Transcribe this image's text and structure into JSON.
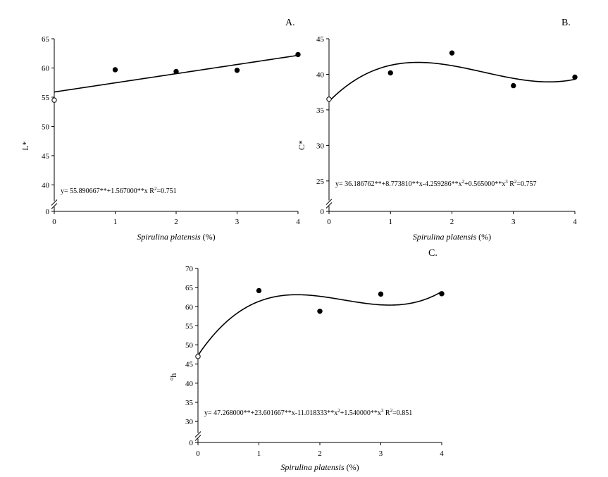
{
  "chart_data": [
    {
      "type": "scatter",
      "panel_label": "A.",
      "xlabel_italic": "Spirulina platensis",
      "xlabel_unit": " (%)",
      "ylabel": "L*",
      "x_ticks": [
        0,
        1,
        2,
        3,
        4
      ],
      "y_ticks": [
        40,
        45,
        50,
        55,
        60,
        65
      ],
      "xlim": [
        0,
        4
      ],
      "ylim": [
        38,
        65
      ],
      "axis_break": true,
      "y_zero_label": "0",
      "points": [
        {
          "x": 0,
          "y": 54.5,
          "marker": "open"
        },
        {
          "x": 1,
          "y": 59.7,
          "marker": "filled"
        },
        {
          "x": 2,
          "y": 59.4,
          "marker": "filled"
        },
        {
          "x": 3,
          "y": 59.6,
          "marker": "filled"
        },
        {
          "x": 4,
          "y": 62.3,
          "marker": "filled"
        }
      ],
      "fit_coefficients": [
        55.890667,
        1.567
      ],
      "equation": {
        "parts": [
          {
            "text": "y= 55.890667**+1.567000**x R",
            "sup": false
          },
          {
            "text": "2",
            "sup": true
          },
          {
            "text": "=0.751",
            "sup": false
          }
        ]
      }
    },
    {
      "type": "scatter",
      "panel_label": "B.",
      "xlabel_italic": "Spirulina platensis",
      "xlabel_unit": " (%)",
      "ylabel": "C*",
      "x_ticks": [
        0,
        1,
        2,
        3,
        4
      ],
      "y_ticks": [
        25,
        30,
        35,
        40,
        45
      ],
      "xlim": [
        0,
        4
      ],
      "ylim": [
        23,
        45
      ],
      "axis_break": true,
      "y_zero_label": "0",
      "points": [
        {
          "x": 0,
          "y": 36.5,
          "marker": "open"
        },
        {
          "x": 1,
          "y": 40.2,
          "marker": "filled"
        },
        {
          "x": 2,
          "y": 43.0,
          "marker": "filled"
        },
        {
          "x": 3,
          "y": 38.4,
          "marker": "filled"
        },
        {
          "x": 4,
          "y": 39.6,
          "marker": "filled"
        }
      ],
      "fit_coefficients": [
        36.186762,
        8.77381,
        -4.259286,
        0.565
      ],
      "equation": {
        "parts": [
          {
            "text": "y= 36.186762**+8.773810**x-4.259286**x",
            "sup": false
          },
          {
            "text": "2",
            "sup": true
          },
          {
            "text": "+0.565000**x",
            "sup": false
          },
          {
            "text": "3",
            "sup": true
          },
          {
            "text": " R",
            "sup": false
          },
          {
            "text": "2",
            "sup": true
          },
          {
            "text": "=0.757",
            "sup": false
          }
        ]
      }
    },
    {
      "type": "scatter",
      "panel_label": "C.",
      "xlabel_italic": "Spirulina platensis",
      "xlabel_unit": " (%)",
      "ylabel": "°h",
      "x_ticks": [
        0,
        1,
        2,
        3,
        4
      ],
      "y_ticks": [
        30,
        35,
        40,
        45,
        50,
        55,
        60,
        65,
        70
      ],
      "xlim": [
        0,
        4
      ],
      "ylim": [
        28,
        70
      ],
      "axis_break": true,
      "y_zero_label": "0",
      "points": [
        {
          "x": 0,
          "y": 47.0,
          "marker": "open"
        },
        {
          "x": 1,
          "y": 64.2,
          "marker": "filled"
        },
        {
          "x": 2,
          "y": 58.8,
          "marker": "filled"
        },
        {
          "x": 3,
          "y": 63.3,
          "marker": "filled"
        },
        {
          "x": 4,
          "y": 63.4,
          "marker": "filled"
        }
      ],
      "fit_coefficients": [
        47.268,
        23.601667,
        -11.018333,
        1.54
      ],
      "equation": {
        "parts": [
          {
            "text": "y= 47.268000**+23.601667**x-11.018333**x",
            "sup": false
          },
          {
            "text": "2",
            "sup": true
          },
          {
            "text": "+1.540000**x",
            "sup": false
          },
          {
            "text": "3",
            "sup": true
          },
          {
            "text": " R",
            "sup": false
          },
          {
            "text": "2",
            "sup": true
          },
          {
            "text": "=0.851",
            "sup": false
          }
        ]
      }
    }
  ]
}
